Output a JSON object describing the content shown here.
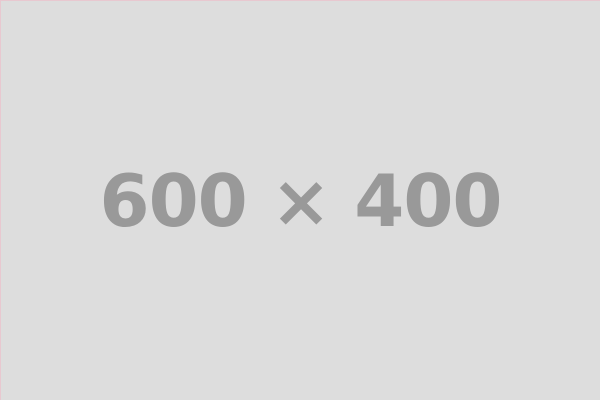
{
  "placeholder": {
    "text": "600 × 400",
    "background_color": "#dddddd",
    "text_color": "#999999"
  }
}
